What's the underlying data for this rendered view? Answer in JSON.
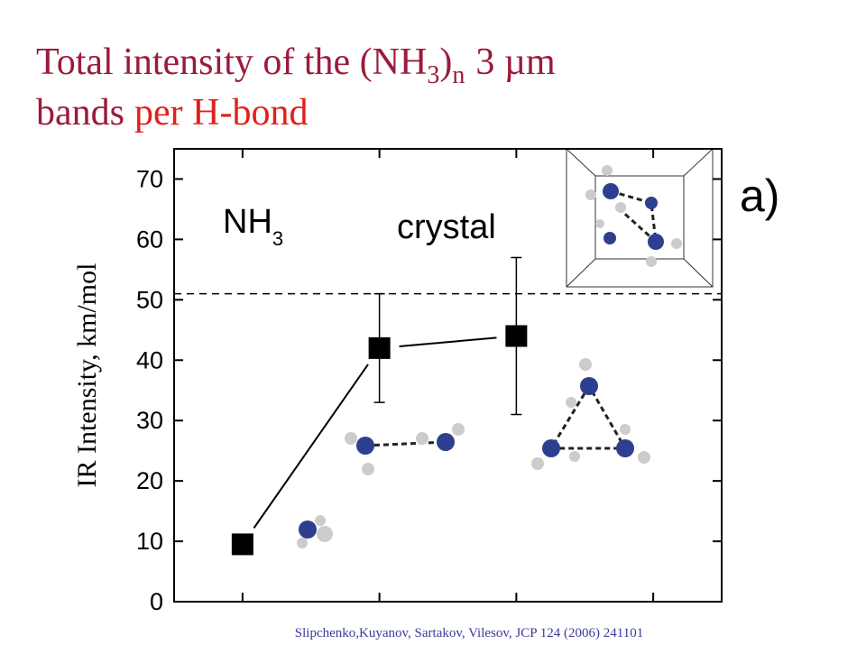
{
  "title_line1": [
    "Total intensity of the (NH",
    "3",
    ")",
    "n",
    "3 µm"
  ],
  "title_line2": [
    "bands",
    "per H-bond"
  ],
  "source": "Slipchenko,Kuyanov, Sartakov, Vilesov,  JCP 124 (2006) 241101",
  "chart_data": {
    "type": "line",
    "ylabel": "IR Intensity, km/mol",
    "categories": [
      null,
      null,
      null,
      null
    ],
    "values": [
      9.5,
      42,
      44,
      null
    ],
    "errors": [
      null,
      9,
      13,
      null
    ],
    "color": "#000000",
    "reference_line": 51,
    "ylim": [
      0,
      75
    ],
    "yticks": [
      0,
      10,
      20,
      30,
      40,
      50,
      60,
      70
    ],
    "annotations": [
      "NH",
      "3",
      "crystal",
      "a)"
    ]
  }
}
